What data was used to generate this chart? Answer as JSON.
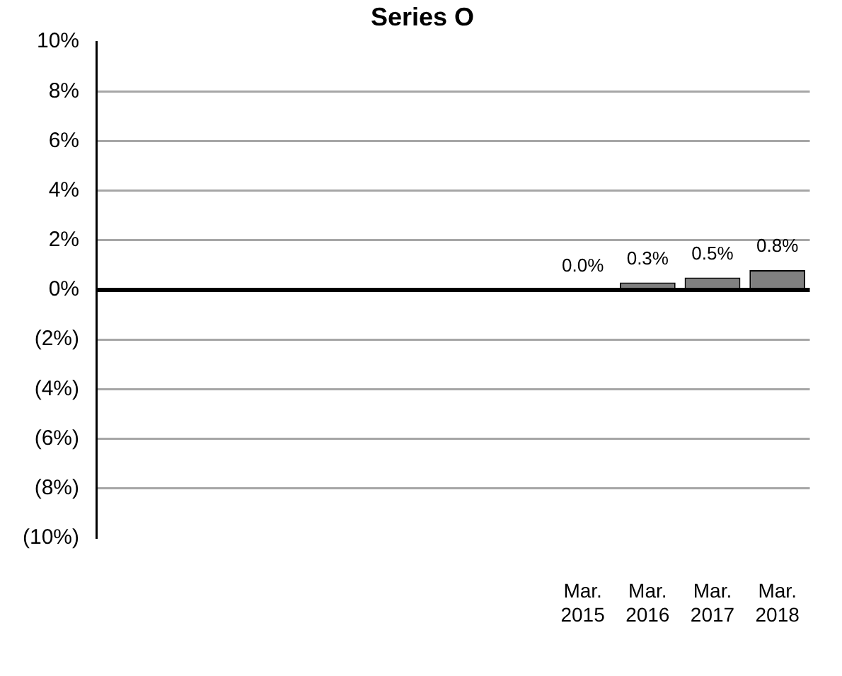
{
  "chart_data": {
    "type": "bar",
    "title": "Series O",
    "categories": [
      null,
      null,
      null,
      null,
      null,
      null,
      null,
      "Mar. 2015",
      "Mar. 2016",
      "Mar. 2017",
      "Mar. 2018"
    ],
    "values": [
      null,
      null,
      null,
      null,
      null,
      null,
      null,
      0,
      0.3,
      0.5,
      0.8
    ],
    "value_labels": [
      null,
      null,
      null,
      null,
      null,
      null,
      null,
      "0.0%",
      "0.3%",
      "0.5%",
      "0.8%"
    ],
    "color": "#808080",
    "ylim": [
      -10,
      10
    ],
    "yticks": [
      {
        "value": -10,
        "label": "(10%)"
      },
      {
        "value": -8,
        "label": "(8%)"
      },
      {
        "value": -6,
        "label": "(6%)"
      },
      {
        "value": -4,
        "label": "(4%)"
      },
      {
        "value": -2,
        "label": "(2%)"
      },
      {
        "value": 0,
        "label": "0%"
      },
      {
        "value": 2,
        "label": "2%"
      },
      {
        "value": 4,
        "label": "4%"
      },
      {
        "value": 6,
        "label": "6%"
      },
      {
        "value": 8,
        "label": "8%"
      },
      {
        "value": 10,
        "label": "10%"
      }
    ],
    "grid": "y",
    "legend": false
  }
}
